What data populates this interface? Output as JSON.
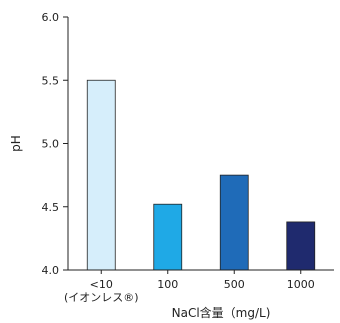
{
  "chart_data": {
    "type": "bar",
    "categories": [
      "<10",
      "100",
      "500",
      "1000"
    ],
    "category_sublabels": [
      "(イオンレス®)",
      "",
      "",
      ""
    ],
    "values": [
      5.5,
      4.52,
      4.75,
      4.38
    ],
    "bar_colors": [
      "#d6eefb",
      "#1fa9e6",
      "#1f6bb8",
      "#1f2a6e"
    ],
    "xlabel": "NaCl含量（mg/L)",
    "ylabel": "pH",
    "ylim": [
      4.0,
      6.0
    ],
    "yticks": [
      "4.0",
      "4.5",
      "5.0",
      "5.5",
      "6.0"
    ],
    "grid": false
  }
}
